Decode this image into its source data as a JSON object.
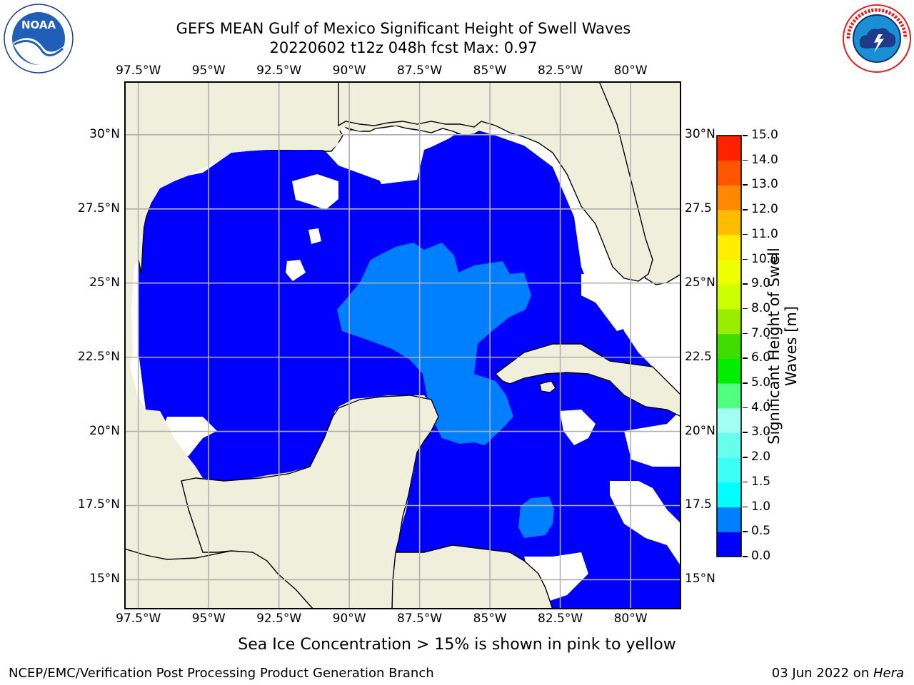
{
  "header": {
    "title_line1": "GEFS MEAN Gulf of Mexico Significant Height of Swell Waves",
    "title_line2": "20220602 t12z 048h fcst   Max: 0.97"
  },
  "logos": {
    "left_icon": "noaa-logo",
    "right_icon": "nws-logo",
    "noaa_text": "NOAA",
    "noaa_ring": "NATIONAL OCEANIC AND ATMOSPHERIC ADMINISTRATION · U.S. DEPARTMENT OF COMMERCE",
    "nws_ring": "NATIONAL WEATHER SERVICE"
  },
  "map": {
    "lon_labels": [
      "97.5°W",
      "95°W",
      "92.5°W",
      "90°W",
      "87.5°W",
      "85°W",
      "82.5°W",
      "80°W"
    ],
    "lon_values": [
      -97.5,
      -95,
      -92.5,
      -90,
      -87.5,
      -85,
      -82.5,
      -80
    ],
    "lat_labels_left": [
      "30°N",
      "27.5°N",
      "25°N",
      "22.5°N",
      "20°N",
      "17.5°N",
      "15°N"
    ],
    "lat_labels_right": [
      "30°N",
      "27.5",
      "25°N",
      "22.5",
      "20°N",
      "17.5",
      "15°N"
    ],
    "lat_values": [
      30,
      27.5,
      25,
      22.5,
      20,
      17.5,
      15
    ],
    "extent": {
      "lon_min": -98,
      "lon_max": -78.2,
      "lat_min": 14,
      "lat_max": 31.8
    },
    "colors": {
      "land": "#efefdc",
      "coast": "#000000",
      "grid": "#b0b0b0",
      "swell_0_05": "#0000ff",
      "swell_05_1": "#0080ff",
      "no_data": "#ffffff"
    }
  },
  "colorbar": {
    "label_line1": "Significant Height of Swell",
    "label_line2": "Waves [m]",
    "ticks": [
      "0.0",
      "0.5",
      "1.0",
      "1.5",
      "2.0",
      "3.0",
      "4.0",
      "5.0",
      "6.0",
      "7.0",
      "8.0",
      "9.0",
      "10.0",
      "11.0",
      "12.0",
      "13.0",
      "14.0",
      "15.0"
    ],
    "bin_colors": [
      "#0000ff",
      "#0080ff",
      "#00ffff",
      "#3cfff5",
      "#66ffee",
      "#a0fff0",
      "#50ff80",
      "#00ee00",
      "#40dd00",
      "#99ee00",
      "#ccff00",
      "#eeff00",
      "#ffee00",
      "#ffbb00",
      "#ff8800",
      "#ff5500",
      "#ff2200",
      "#ff0000"
    ]
  },
  "caption": "Sea Ice Concentration > 15% is shown in pink to yellow",
  "footer": {
    "left": "NCEP/EMC/Verification Post Processing Product Generation Branch",
    "right_prefix": "03 Jun 2022 on ",
    "right_host": "Hera"
  }
}
